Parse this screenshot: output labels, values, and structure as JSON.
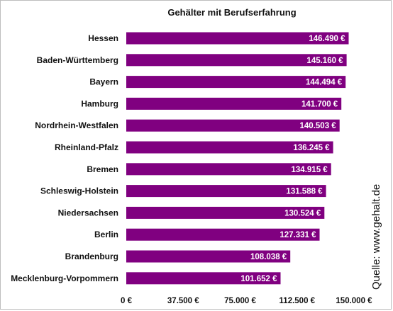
{
  "chart_data": {
    "type": "bar",
    "orientation": "horizontal",
    "title": "Gehälter mit Berufserfahrung",
    "categories": [
      "Hessen",
      "Baden-Württemberg",
      "Bayern",
      "Hamburg",
      "Nordrhein-Westfalen",
      "Rheinland-Pfalz",
      "Bremen",
      "Schleswig-Holstein",
      "Niedersachsen",
      "Berlin",
      "Brandenburg",
      "Mecklenburg-Vorpommern"
    ],
    "values": [
      146490,
      145160,
      144494,
      141700,
      140503,
      136245,
      134915,
      131588,
      130524,
      127331,
      108038,
      101652
    ],
    "value_labels": [
      "146.490 €",
      "145.160 €",
      "144.494 €",
      "141.700 €",
      "140.503 €",
      "136.245 €",
      "134.915 €",
      "131.588 €",
      "130.524 €",
      "127.331 €",
      "108.038 €",
      "101.652 €"
    ],
    "xlim": [
      0,
      150000
    ],
    "xticks": [
      0,
      37500,
      75000,
      112500,
      150000
    ],
    "xtick_labels": [
      "0 €",
      "37.500 €",
      "75.000 €",
      "112.500 €",
      "150.000 €"
    ],
    "bar_color": "#800080",
    "grid": false,
    "source": "Quelle: www.gehalt.de"
  }
}
